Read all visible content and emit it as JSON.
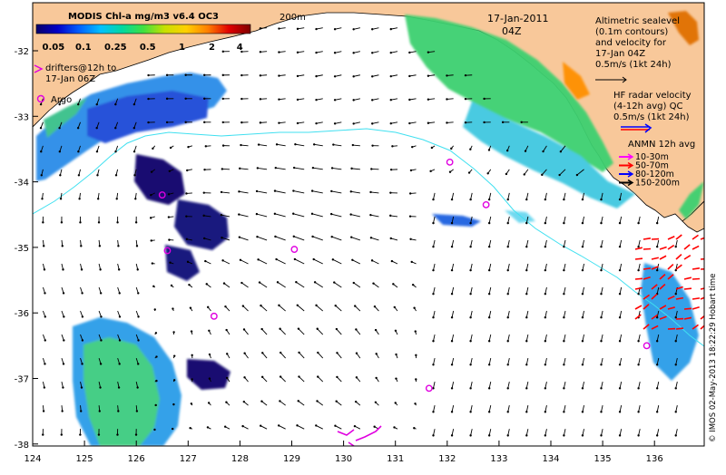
{
  "colorbar": {
    "title": "MODIS Chl-a mg/m3 v6.4 OC3",
    "ticks": [
      "0.05",
      "0.1",
      "0.25",
      "0.5",
      "1",
      "2",
      "4"
    ],
    "colors": [
      "#08006a",
      "#0000c8",
      "#0060ff",
      "#00c0ff",
      "#00d8a0",
      "#40e040",
      "#c8e000",
      "#ffd000",
      "#ff8000",
      "#e00000",
      "#800000"
    ]
  },
  "isobath_label": "200m",
  "date": "17-Jan-2011",
  "time": "04Z",
  "legend": {
    "drifters": "drifters@12h to 17-Jan 06Z",
    "argo": "Argo",
    "altimetry": [
      "Altimetric sealevel",
      "(0.1m contours)",
      "and velocity for",
      "17-Jan 04Z",
      "0.5m/s (1kt 24h)"
    ],
    "hf_radar": [
      "HF radar velocity",
      "(4-12h avg) QC",
      "0.5m/s (1kt 24h)"
    ],
    "anmn_title": "ANMN 12h avg",
    "anmn_items": [
      {
        "label": "10-30m",
        "color": "#ff00ff"
      },
      {
        "label": "50-70m",
        "color": "#ff0000"
      },
      {
        "label": "80-120m",
        "color": "#0000ff"
      },
      {
        "label": "150-200m",
        "color": "#000000"
      }
    ]
  },
  "credit": "© IMOS 02-May-2013 18:22:29 Hobart time",
  "axes": {
    "xticks": [
      "124",
      "125",
      "126",
      "127",
      "128",
      "129",
      "130",
      "131",
      "132",
      "133",
      "134",
      "135",
      "136"
    ],
    "yticks": [
      "-32",
      "-33",
      "-34",
      "-35",
      "-36",
      "-37",
      "-38"
    ]
  },
  "colors": {
    "land": "#f8c89a",
    "coast": "#000000",
    "track": "#40e0f0",
    "argo": "#e000e0",
    "hf_radar": "#ff0000"
  },
  "argo_floats": [
    {
      "lon": 126.5,
      "lat": -34.2
    },
    {
      "lon": 126.6,
      "lat": -35.05
    },
    {
      "lon": 127.5,
      "lat": -36.05
    },
    {
      "lon": 129.05,
      "lat": -35.03
    },
    {
      "lon": 132.05,
      "lat": -33.7
    },
    {
      "lon": 132.75,
      "lat": -34.35
    },
    {
      "lon": 131.65,
      "lat": -37.15
    },
    {
      "lon": 135.85,
      "lat": -36.5
    }
  ]
}
